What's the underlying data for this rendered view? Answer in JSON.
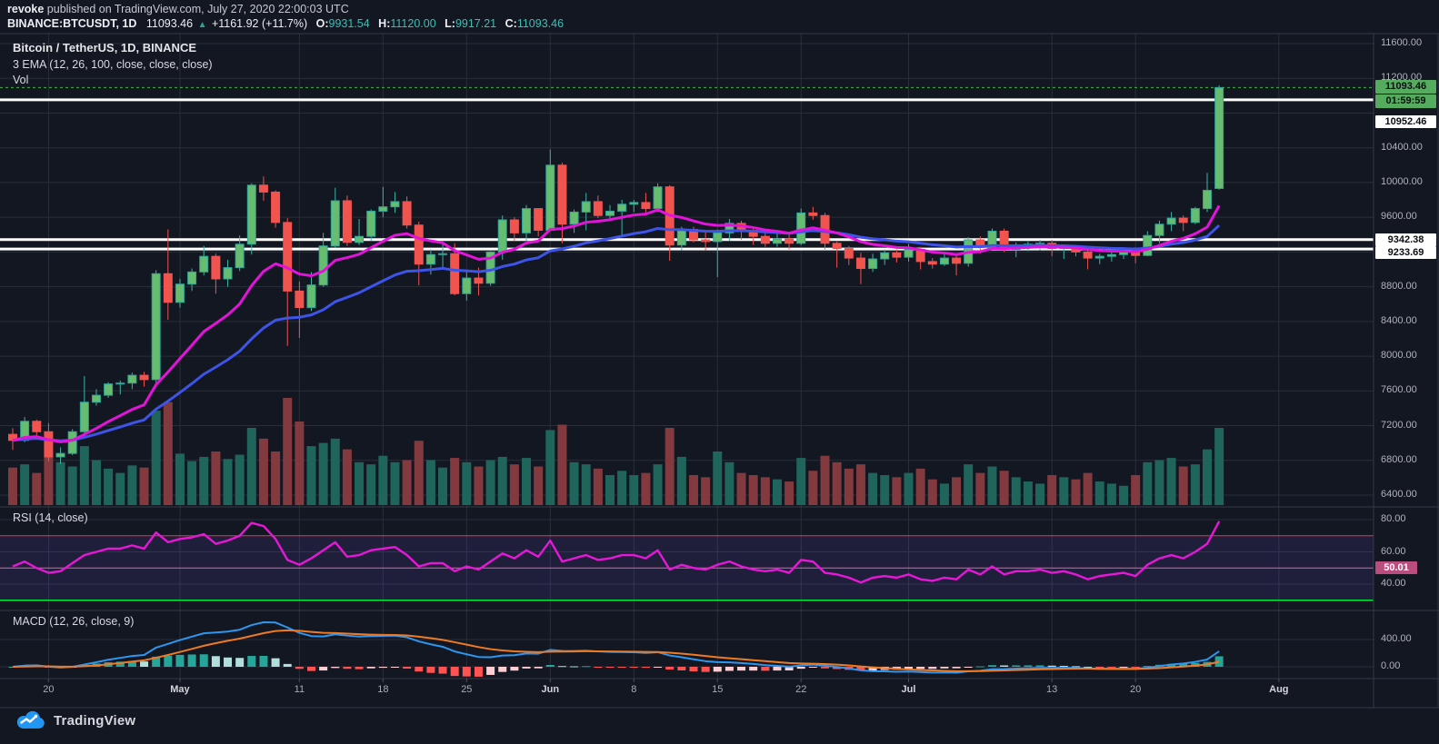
{
  "header": {
    "author": "revoke",
    "published": "published on TradingView.com, July 27, 2020 22:00:03 UTC"
  },
  "ticker": {
    "symbol_interval": "BINANCE:BTCUSDT, 1D",
    "last": "11093.46",
    "up_arrow": "▲",
    "change": "+1161.92 (+11.7%)",
    "o_label": "O:",
    "o": "9931.54",
    "h_label": "H:",
    "h": "11120.00",
    "l_label": "L:",
    "l": "9917.21",
    "c_label": "C:",
    "c": "11093.46"
  },
  "legend": {
    "title": "Bitcoin / TetherUS, 1D, BINANCE",
    "ema": "3 EMA (12, 26, 100, close, close, close)",
    "vol": "Vol"
  },
  "panels": {
    "rsi_label": "RSI (14, close)",
    "macd_label": "MACD (12, 26, close, 9)"
  },
  "logo": {
    "text": "TradingView"
  },
  "colors": {
    "background": "#131722",
    "grid": "#2a2e39",
    "separator": "#363a45",
    "up_body": "#66bd70",
    "up_border": "#2fa59a",
    "up_wick": "#3fb3a6",
    "down_body": "#f1544f",
    "down_border": "#ef5350",
    "down_wick": "#f1544f",
    "vol_up": "#1f655c",
    "vol_down": "#833a3f",
    "ema_fast": "#e313d9",
    "ema_slow": "#3e53e8",
    "rsi_line": "#e617d6",
    "rsi_overbought": "#f23645",
    "rsi_mid_line": "#e0679c",
    "rsi_oversold": "#00e640",
    "rsi_band": "rgba(126,87,255,0.12)",
    "macd_line": "#2d96f0",
    "macd_signal": "#ef7a24",
    "hist_up": "#26a69a",
    "hist_up_weak": "#b2dfdb",
    "hist_down": "#ff5252",
    "hist_down_weak": "#ffcdd2",
    "last_price_line": "#4caf50",
    "price_badge": "#55ab5e",
    "white_badge": "#ffffff",
    "rsi_badge": "#ba4d7d",
    "accent_teal": "#3cbfb4",
    "logo_blue": "#2196f3"
  },
  "chart_data": {
    "type": "candlestick",
    "symbol": "BINANCE:BTCUSDT",
    "interval": "1D",
    "title": "Bitcoin / TetherUS, 1D, BINANCE",
    "price_axis": {
      "min": 6400,
      "max": 11600,
      "step": 400,
      "ticks": [
        {
          "label": "11600.00",
          "value": 11600
        },
        {
          "label": "11200.00",
          "value": 11200
        },
        {
          "label": "10400.00",
          "value": 10400
        },
        {
          "label": "10000.00",
          "value": 10000
        },
        {
          "label": "9600.00",
          "value": 9600
        },
        {
          "label": "8800.00",
          "value": 8800
        },
        {
          "label": "8400.00",
          "value": 8400
        },
        {
          "label": "8000.00",
          "value": 8000
        },
        {
          "label": "7600.00",
          "value": 7600
        },
        {
          "label": "7200.00",
          "value": 7200
        },
        {
          "label": "6800.00",
          "value": 6800
        },
        {
          "label": "6400.00",
          "value": 6400
        }
      ]
    },
    "badges": {
      "last_price": {
        "label": "11093.46",
        "value": 11093.46
      },
      "countdown": {
        "label": "01:59:59"
      },
      "white_levels": [
        {
          "label": "10952.46",
          "value": 10952.46
        },
        {
          "label": "9342.38",
          "value": 9342.38
        },
        {
          "label": "9233.69",
          "value": 9233.69
        }
      ],
      "rsi_mid": {
        "label": "50.01",
        "value": 50.01
      }
    },
    "time_ticks": [
      {
        "label": "20",
        "i": 3,
        "major": false
      },
      {
        "label": "May",
        "i": 14,
        "major": true
      },
      {
        "label": "11",
        "i": 24,
        "major": false
      },
      {
        "label": "18",
        "i": 31,
        "major": false
      },
      {
        "label": "25",
        "i": 38,
        "major": false
      },
      {
        "label": "Jun",
        "i": 45,
        "major": true
      },
      {
        "label": "8",
        "i": 52,
        "major": false
      },
      {
        "label": "15",
        "i": 59,
        "major": false
      },
      {
        "label": "22",
        "i": 66,
        "major": false
      },
      {
        "label": "Jul",
        "i": 75,
        "major": true
      },
      {
        "label": "13",
        "i": 87,
        "major": false
      },
      {
        "label": "20",
        "i": 94,
        "major": false
      },
      {
        "label": "Aug",
        "i": 106,
        "major": true
      }
    ],
    "rsi_axis": {
      "ticks": [
        {
          "label": "80.00",
          "value": 80
        },
        {
          "label": "60.00",
          "value": 60
        },
        {
          "label": "40.00",
          "value": 40
        }
      ],
      "overbought": 70,
      "oversold": 30,
      "mid": 50.01
    },
    "macd_axis": {
      "ticks": [
        {
          "label": "400.00",
          "value": 400
        },
        {
          "label": "0.00",
          "value": 0
        }
      ]
    },
    "indicators": {
      "ema_fast_period": 12,
      "ema_slow_period": 26,
      "macd_params": [
        12,
        26,
        9
      ]
    },
    "candles_format": [
      "date",
      "open",
      "high",
      "low",
      "close",
      "volume_pct",
      "rsi"
    ],
    "candles": [
      [
        "Apr 17",
        7100,
        7170,
        6920,
        7030,
        35,
        51
      ],
      [
        "Apr 18",
        7030,
        7300,
        7010,
        7250,
        38,
        54
      ],
      [
        "Apr 19",
        7250,
        7270,
        7050,
        7130,
        30,
        50
      ],
      [
        "Apr 20",
        7130,
        7230,
        6790,
        6840,
        45,
        47
      ],
      [
        "Apr 21",
        6840,
        6950,
        6760,
        6880,
        40,
        48
      ],
      [
        "Apr 22",
        6880,
        7160,
        6860,
        7130,
        36,
        53
      ],
      [
        "Apr 23",
        7130,
        7770,
        7080,
        7470,
        55,
        58
      ],
      [
        "Apr 24",
        7470,
        7620,
        7430,
        7550,
        42,
        60
      ],
      [
        "Apr 25",
        7550,
        7700,
        7520,
        7680,
        34,
        62
      ],
      [
        "Apr 26",
        7680,
        7720,
        7560,
        7690,
        30,
        62
      ],
      [
        "Apr 27",
        7690,
        7810,
        7620,
        7780,
        37,
        64
      ],
      [
        "Apr 28",
        7780,
        7820,
        7650,
        7730,
        35,
        62
      ],
      [
        "Apr 29",
        7730,
        8990,
        7690,
        8950,
        88,
        72
      ],
      [
        "Apr 30",
        8950,
        9460,
        8420,
        8620,
        96,
        66
      ],
      [
        "May 1",
        8620,
        8890,
        8560,
        8830,
        48,
        68
      ],
      [
        "May 2",
        8830,
        9010,
        8750,
        8970,
        41,
        69
      ],
      [
        "May 3",
        8970,
        9270,
        8930,
        9150,
        45,
        71
      ],
      [
        "May 4",
        9150,
        9180,
        8720,
        8890,
        50,
        65
      ],
      [
        "May 5",
        8890,
        9110,
        8800,
        9020,
        43,
        67
      ],
      [
        "May 6",
        9020,
        9390,
        8980,
        9290,
        47,
        70
      ],
      [
        "May 7",
        9290,
        9990,
        9170,
        9970,
        72,
        78
      ],
      [
        "May 8",
        9970,
        10070,
        9790,
        9890,
        62,
        76
      ],
      [
        "May 9",
        9890,
        9910,
        9480,
        9540,
        50,
        68
      ],
      [
        "May 10",
        9540,
        9590,
        8120,
        8750,
        100,
        55
      ],
      [
        "May 11",
        8750,
        8860,
        8210,
        8560,
        78,
        52
      ],
      [
        "May 12",
        8560,
        8970,
        8520,
        8820,
        55,
        56
      ],
      [
        "May 13",
        8820,
        9420,
        8800,
        9270,
        58,
        61
      ],
      [
        "May 14",
        9270,
        9940,
        9250,
        9790,
        62,
        66
      ],
      [
        "May 15",
        9790,
        9850,
        9270,
        9310,
        52,
        57
      ],
      [
        "May 16",
        9310,
        9580,
        9280,
        9380,
        40,
        58
      ],
      [
        "May 17",
        9380,
        9690,
        9330,
        9670,
        38,
        61
      ],
      [
        "May 18",
        9670,
        9950,
        9600,
        9720,
        46,
        62
      ],
      [
        "May 19",
        9720,
        9890,
        9650,
        9780,
        40,
        63
      ],
      [
        "May 20",
        9780,
        9840,
        9470,
        9510,
        42,
        58
      ],
      [
        "May 21",
        9510,
        9550,
        8815,
        9060,
        60,
        51
      ],
      [
        "May 22",
        9060,
        9230,
        8940,
        9170,
        42,
        53
      ],
      [
        "May 23",
        9170,
        9310,
        9020,
        9180,
        35,
        53
      ],
      [
        "May 24",
        9180,
        9300,
        8700,
        8720,
        44,
        48
      ],
      [
        "May 25",
        8720,
        8980,
        8640,
        8900,
        40,
        51
      ],
      [
        "May 26",
        8900,
        9020,
        8700,
        8840,
        36,
        49
      ],
      [
        "May 27",
        8840,
        9210,
        8810,
        9200,
        42,
        54
      ],
      [
        "May 28",
        9200,
        9620,
        9110,
        9570,
        45,
        59
      ],
      [
        "May 29",
        9570,
        9600,
        9330,
        9420,
        38,
        56
      ],
      [
        "May 30",
        9420,
        9740,
        9330,
        9700,
        44,
        61
      ],
      [
        "May 31",
        9700,
        9700,
        9380,
        9450,
        36,
        57
      ],
      [
        "Jun 1",
        9450,
        10380,
        9450,
        10200,
        70,
        67
      ],
      [
        "Jun 2",
        10200,
        10230,
        9300,
        9520,
        75,
        54
      ],
      [
        "Jun 3",
        9520,
        9690,
        9420,
        9660,
        40,
        56
      ],
      [
        "Jun 4",
        9660,
        9880,
        9450,
        9780,
        38,
        58
      ],
      [
        "Jun 5",
        9780,
        9850,
        9590,
        9620,
        34,
        55
      ],
      [
        "Jun 6",
        9620,
        9740,
        9580,
        9670,
        28,
        56
      ],
      [
        "Jun 7",
        9670,
        9800,
        9390,
        9750,
        32,
        58
      ],
      [
        "Jun 8",
        9750,
        9800,
        9660,
        9770,
        28,
        58
      ],
      [
        "Jun 9",
        9770,
        9880,
        9640,
        9700,
        30,
        56
      ],
      [
        "Jun 10",
        9700,
        9990,
        9660,
        9950,
        38,
        61
      ],
      [
        "Jun 11",
        9950,
        9970,
        9100,
        9280,
        72,
        49
      ],
      [
        "Jun 12",
        9280,
        9490,
        9220,
        9460,
        45,
        52
      ],
      [
        "Jun 13",
        9460,
        9490,
        9310,
        9340,
        28,
        50
      ],
      [
        "Jun 14",
        9340,
        9430,
        9220,
        9320,
        26,
        49
      ],
      [
        "Jun 15",
        9320,
        9460,
        8910,
        9420,
        50,
        52
      ],
      [
        "Jun 16",
        9420,
        9580,
        9330,
        9530,
        40,
        54
      ],
      [
        "Jun 17",
        9530,
        9560,
        9340,
        9450,
        30,
        51
      ],
      [
        "Jun 18",
        9450,
        9480,
        9280,
        9380,
        28,
        49
      ],
      [
        "Jun 19",
        9380,
        9420,
        9260,
        9300,
        26,
        48
      ],
      [
        "Jun 20",
        9300,
        9430,
        9260,
        9350,
        24,
        49
      ],
      [
        "Jun 21",
        9350,
        9410,
        9230,
        9300,
        22,
        47
      ],
      [
        "Jun 22",
        9300,
        9700,
        9280,
        9650,
        44,
        55
      ],
      [
        "Jun 23",
        9650,
        9720,
        9570,
        9620,
        32,
        54
      ],
      [
        "Jun 24",
        9620,
        9650,
        9230,
        9300,
        46,
        47
      ],
      [
        "Jun 25",
        9300,
        9320,
        9020,
        9240,
        40,
        46
      ],
      [
        "Jun 26",
        9240,
        9270,
        9050,
        9130,
        34,
        44
      ],
      [
        "Jun 27",
        9130,
        9190,
        8830,
        9010,
        38,
        41
      ],
      [
        "Jun 28",
        9010,
        9180,
        8970,
        9120,
        30,
        44
      ],
      [
        "Jun 29",
        9120,
        9230,
        9050,
        9190,
        28,
        45
      ],
      [
        "Jun 30",
        9190,
        9230,
        9080,
        9140,
        26,
        44
      ],
      [
        "Jul 1",
        9140,
        9290,
        9090,
        9230,
        30,
        46
      ],
      [
        "Jul 2",
        9230,
        9260,
        9000,
        9090,
        34,
        43
      ],
      [
        "Jul 3",
        9090,
        9130,
        9010,
        9060,
        24,
        42
      ],
      [
        "Jul 4",
        9060,
        9180,
        9040,
        9130,
        20,
        44
      ],
      [
        "Jul 5",
        9130,
        9160,
        8930,
        9070,
        26,
        43
      ],
      [
        "Jul 6",
        9070,
        9370,
        9030,
        9340,
        38,
        49
      ],
      [
        "Jul 7",
        9340,
        9380,
        9180,
        9250,
        30,
        46
      ],
      [
        "Jul 8",
        9250,
        9470,
        9230,
        9440,
        36,
        51
      ],
      [
        "Jul 9",
        9440,
        9470,
        9200,
        9230,
        32,
        46
      ],
      [
        "Jul 10",
        9230,
        9310,
        9140,
        9280,
        26,
        48
      ],
      [
        "Jul 11",
        9280,
        9320,
        9210,
        9290,
        22,
        48
      ],
      [
        "Jul 12",
        9290,
        9340,
        9220,
        9300,
        20,
        49
      ],
      [
        "Jul 13",
        9300,
        9340,
        9150,
        9240,
        28,
        47
      ],
      [
        "Jul 14",
        9240,
        9280,
        9120,
        9250,
        26,
        48
      ],
      [
        "Jul 15",
        9250,
        9280,
        9150,
        9200,
        24,
        46
      ],
      [
        "Jul 16",
        9200,
        9220,
        9000,
        9130,
        30,
        43
      ],
      [
        "Jul 17",
        9130,
        9180,
        9060,
        9150,
        22,
        45
      ],
      [
        "Jul 18",
        9150,
        9200,
        9090,
        9170,
        20,
        46
      ],
      [
        "Jul 19",
        9170,
        9230,
        9120,
        9210,
        18,
        47
      ],
      [
        "Jul 20",
        9210,
        9220,
        9070,
        9160,
        28,
        45
      ],
      [
        "Jul 21",
        9160,
        9440,
        9150,
        9390,
        40,
        52
      ],
      [
        "Jul 22",
        9390,
        9560,
        9300,
        9520,
        42,
        56
      ],
      [
        "Jul 23",
        9520,
        9660,
        9440,
        9590,
        44,
        58
      ],
      [
        "Jul 24",
        9590,
        9620,
        9440,
        9540,
        36,
        56
      ],
      [
        "Jul 25",
        9540,
        9720,
        9520,
        9700,
        38,
        60
      ],
      [
        "Jul 26",
        9700,
        10110,
        9660,
        9910,
        52,
        65
      ],
      [
        "Jul 27",
        9931.54,
        11120,
        9917.21,
        11093.46,
        72,
        79
      ]
    ]
  }
}
